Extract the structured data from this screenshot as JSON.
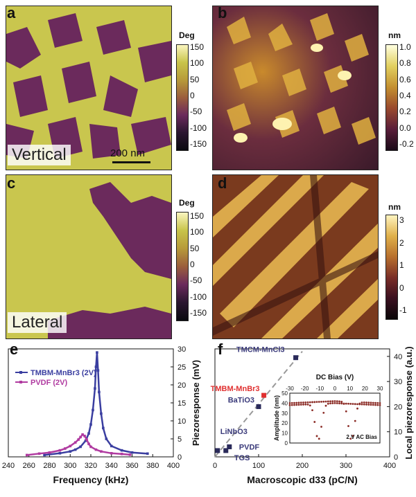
{
  "panels": {
    "a": {
      "letter": "a",
      "label": "Vertical",
      "unit": "Deg",
      "ticks": [
        "150",
        "100",
        "50",
        "0",
        "-50",
        "-100",
        "-150"
      ],
      "scale_bar": "200 nm"
    },
    "b": {
      "letter": "b",
      "unit": "nm",
      "ticks": [
        "1.0",
        "0.8",
        "0.6",
        "0.4",
        "0.2",
        "0.0",
        "-0.2"
      ]
    },
    "c": {
      "letter": "c",
      "label": "Lateral",
      "unit": "Deg",
      "ticks": [
        "150",
        "100",
        "50",
        "0",
        "-50",
        "-100",
        "-150"
      ]
    },
    "d": {
      "letter": "d",
      "unit": "nm",
      "ticks": [
        "3",
        "2",
        "1",
        "0",
        "-1"
      ]
    },
    "e": {
      "letter": "e"
    },
    "f": {
      "letter": "f"
    }
  },
  "colors": {
    "phase_yellow": "#c9c64e",
    "phase_purple": "#6b2a5c",
    "tmbm_blue": "#3a3ea0",
    "pvdf_purple": "#b03aa0",
    "tmbm_red": "#e03030",
    "inset_dots": "#8a2a24"
  },
  "chart_data": [
    {
      "type": "line",
      "xlabel": "Frequency (kHz)",
      "ylabel": "Piezoresponse (mV)",
      "xlim": [
        240,
        400
      ],
      "ylim": [
        0,
        30
      ],
      "xticks": [
        "240",
        "260",
        "280",
        "300",
        "320",
        "340",
        "360",
        "380",
        "400"
      ],
      "yticks": [
        "0",
        "5",
        "10",
        "15",
        "20",
        "25",
        "30"
      ],
      "series": [
        {
          "name": "TMBM-MnBr3 (2V)",
          "x": [
            275,
            290,
            300,
            305,
            310,
            315,
            318,
            320,
            322,
            324,
            325,
            326,
            327,
            328,
            330,
            332,
            335,
            340,
            350,
            360,
            375
          ],
          "y": [
            0.5,
            1.0,
            1.5,
            2.0,
            2.8,
            4.5,
            6.5,
            9,
            13,
            19,
            25,
            29,
            24,
            18,
            12,
            8,
            5,
            3,
            1.8,
            1.2,
            0.9
          ]
        },
        {
          "name": "PVDF (2V)",
          "x": [
            258,
            270,
            280,
            290,
            295,
            300,
            305,
            308,
            310,
            312,
            314,
            316,
            318,
            320,
            325,
            330,
            340,
            350,
            358
          ],
          "y": [
            0.5,
            0.9,
            1.2,
            1.8,
            2.3,
            3.0,
            4.0,
            4.8,
            5.5,
            6.2,
            5.8,
            4.8,
            3.6,
            2.8,
            2.0,
            1.5,
            1.0,
            0.8,
            0.6
          ]
        }
      ]
    },
    {
      "type": "scatter",
      "xlabel": "Macroscopic d33 (pC/N)",
      "ylabel": "Local piezoresponse (a.u.)",
      "xlim": [
        0,
        400
      ],
      "ylim": [
        0,
        43
      ],
      "xticks": [
        "0",
        "100",
        "200",
        "300",
        "400"
      ],
      "yticks": [
        "0",
        "10",
        "20",
        "30",
        "40"
      ],
      "points": [
        {
          "name": "TMCM-MnCl3",
          "x": 185,
          "y": 39.5
        },
        {
          "name": "TMBM-MnBr3",
          "x": 112,
          "y": 24.5
        },
        {
          "name": "BaTiO3",
          "x": 100,
          "y": 20
        },
        {
          "name": "LiNbO3",
          "x": 6,
          "y": 2.5
        },
        {
          "name": "PVDF",
          "x": 33,
          "y": 4.0
        },
        {
          "name": "TGS",
          "x": 25,
          "y": 2.5
        }
      ],
      "inset": {
        "type": "scatter",
        "xlabel": "DC Bias (V)",
        "ylabel": "Amplitude (nm)",
        "xticks": [
          "-30",
          "-20",
          "-10",
          "0",
          "10",
          "20",
          "30"
        ],
        "yticks": [
          "0",
          "10",
          "20",
          "30",
          "40",
          "50"
        ],
        "xlim": [
          -30,
          30
        ],
        "ylim": [
          0,
          50
        ],
        "annotation": "2 V AC Bias"
      }
    }
  ]
}
